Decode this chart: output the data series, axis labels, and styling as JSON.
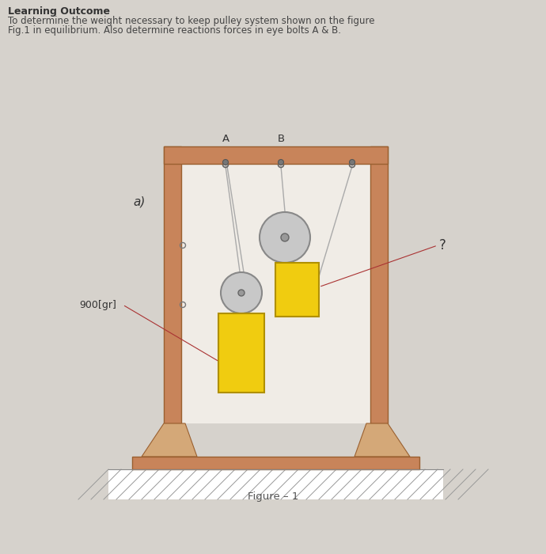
{
  "bg_color": "#d6d2cc",
  "title_line1": "Learning Outcome",
  "title_line2": "To determine the weight necessary to keep pulley system shown on the figure",
  "title_line3": "Fig.1 in equilibrium. Also determine reactions forces in eye bolts A & B.",
  "figure_label": "Figure – 1",
  "label_a": "A",
  "label_b": "B",
  "label_900": "900[gr]",
  "label_q": "?",
  "label_aside": "a)",
  "wood_color": "#c8845a",
  "wood_dark": "#9a6030",
  "wood_light": "#daa070",
  "foot_color": "#d4a878",
  "base_color": "#c8845a",
  "weight_color": "#f0cc10",
  "weight_edge": "#b09000",
  "pulley_fill": "#c8c8c8",
  "pulley_edge": "#888888",
  "rope_color": "#aaaaaa",
  "ann_color": "#aa3333",
  "inner_bg": "#f0ece6"
}
